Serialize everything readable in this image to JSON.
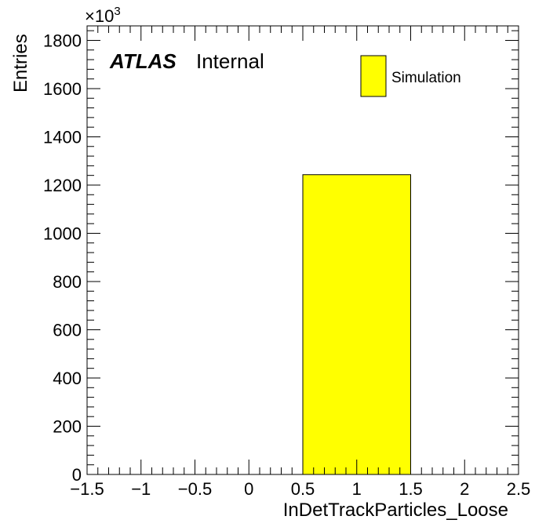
{
  "chart_data": {
    "type": "bar",
    "xlabel": "InDetTrackParticles_Loose",
    "ylabel": "Entries",
    "y_multiplier": {
      "base": "×10",
      "exponent": "3"
    },
    "xlim": [
      -1.5,
      2.5
    ],
    "ylim": [
      0,
      1860
    ],
    "x_ticks": [
      -1.5,
      -1,
      -0.5,
      0,
      0.5,
      1,
      1.5,
      2,
      2.5
    ],
    "x_tick_labels": [
      "−1.5",
      "−1",
      "−0.5",
      "0",
      "0.5",
      "1",
      "1.5",
      "2",
      "2.5"
    ],
    "y_ticks": [
      0,
      200,
      400,
      600,
      800,
      1000,
      1200,
      1400,
      1600,
      1800
    ],
    "y_tick_labels": [
      "0",
      "200",
      "400",
      "600",
      "800",
      "1000",
      "1200",
      "1400",
      "1600",
      "1800"
    ],
    "bins": [
      {
        "low": 0.5,
        "high": 1.5,
        "value": 1243
      }
    ],
    "series": [
      {
        "name": "Simulation",
        "color": "#ffff00",
        "edge_color": "#000000"
      }
    ],
    "legend_placement": "top-right",
    "grid": false
  },
  "labels": {
    "experiment": "ATLAS",
    "status": "Internal"
  }
}
